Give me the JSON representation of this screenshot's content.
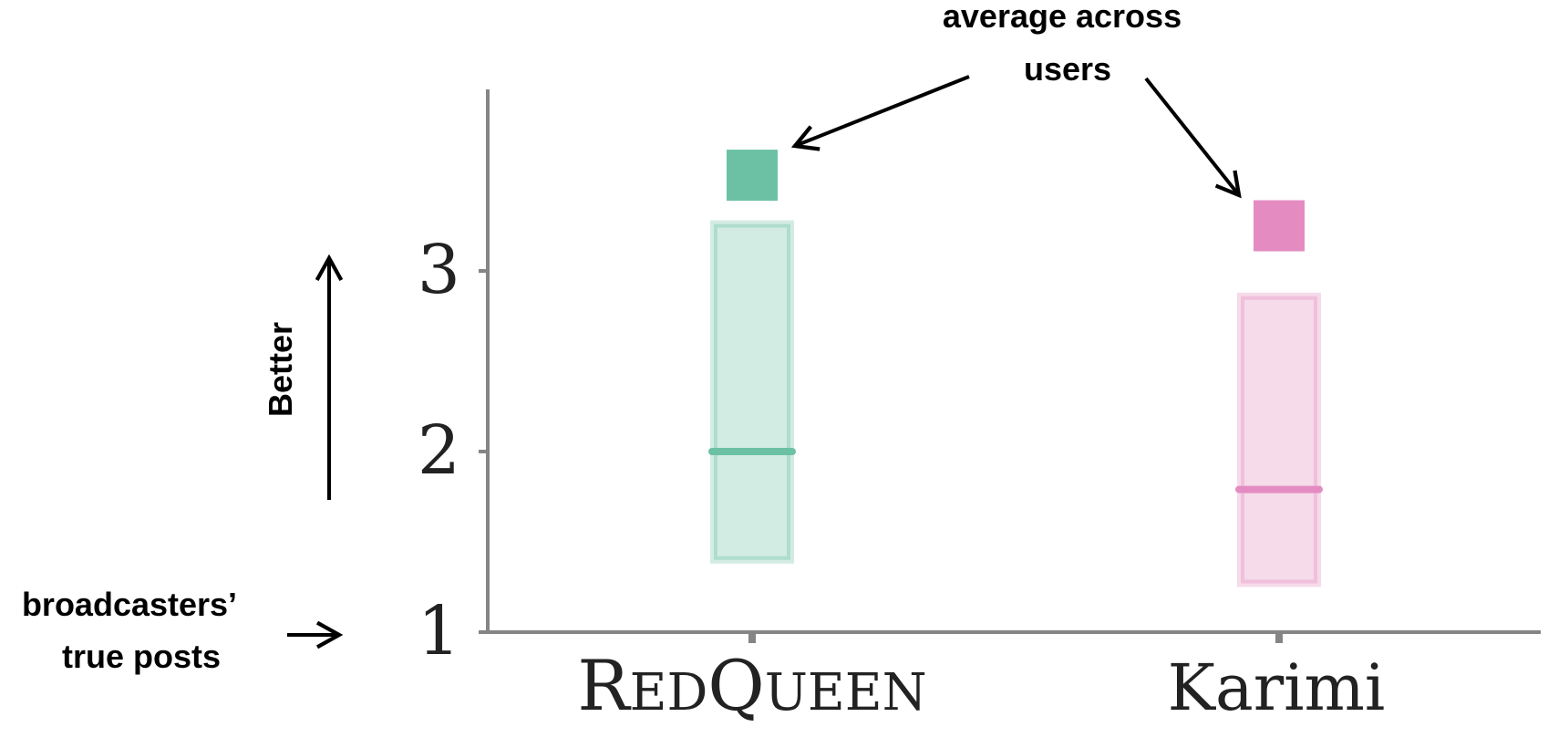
{
  "chart_data": {
    "type": "box",
    "y_ticks": [
      1,
      2,
      3
    ],
    "ylim": [
      1,
      3.95
    ],
    "categories": [
      "RedQueen",
      "Karimi"
    ],
    "series": [
      {
        "category": "RedQueen",
        "box_low": 1.38,
        "box_high": 3.28,
        "median": 2.0,
        "average": 3.53,
        "color": "#6cc1a5",
        "light": "#d3ece3"
      },
      {
        "category": "Karimi",
        "box_low": 1.25,
        "box_high": 2.88,
        "median": 1.79,
        "average": 3.25,
        "color": "#e48cc2",
        "light": "#f6dbea"
      }
    ],
    "annotations": {
      "average": {
        "line1": "average across",
        "line2": "users"
      },
      "better": "Better",
      "baseline": {
        "line1": "broadcasters’",
        "line2": "true posts"
      }
    },
    "axis_color": "#858585"
  }
}
